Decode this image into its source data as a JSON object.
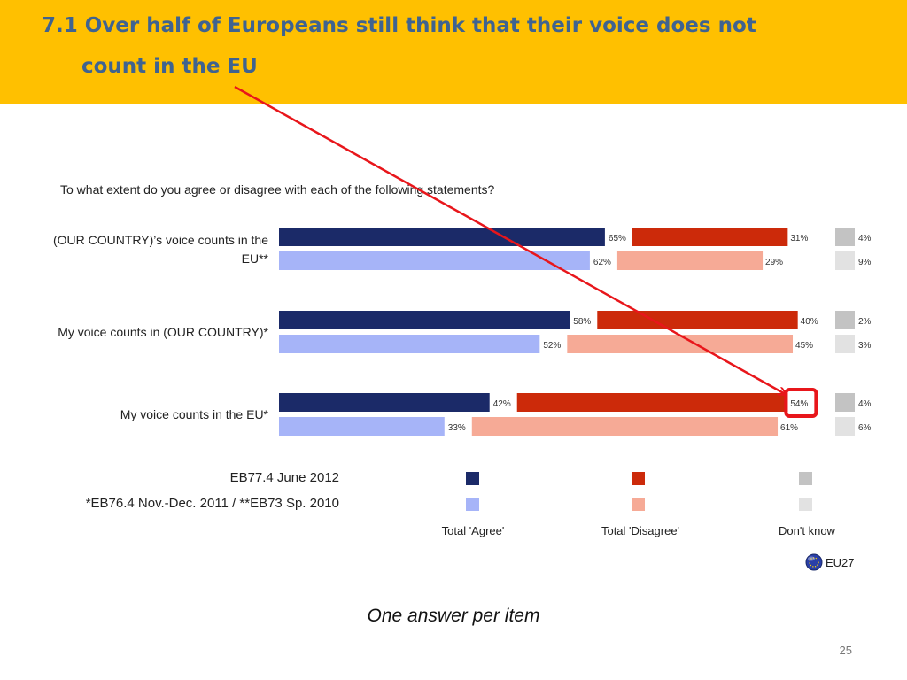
{
  "slide": {
    "title_line1": "7.1 Over half of Europeans still think that their voice does not",
    "title_line2": "count in the EU",
    "footer_note": "One answer per item",
    "page_number": "25",
    "banner_color": "#ffc000",
    "title_color": "#3f6390",
    "annotation_color": "#e8161b"
  },
  "chart_data": {
    "type": "bar",
    "orientation": "horizontal-stacked-100",
    "question": "To what extent do you agree or disagree with each of the following statements?",
    "categories": [
      "(OUR COUNTRY)’s voice counts in the EU**",
      "My voice counts in (OUR COUNTRY)*",
      "My voice counts in the EU*"
    ],
    "category_lines": [
      [
        "(OUR COUNTRY)’s voice counts in the",
        "EU**"
      ],
      [
        "My voice counts in (OUR COUNTRY)*"
      ],
      [
        "My voice counts in the EU*"
      ]
    ],
    "waves": [
      {
        "label": "EB77.4 June 2012",
        "values": {
          "agree": [
            65,
            58,
            42
          ],
          "disagree": [
            31,
            40,
            54
          ],
          "dont_know": [
            4,
            2,
            4
          ]
        },
        "colors": {
          "agree": "#1b2a68",
          "disagree": "#cc2a0a",
          "dont_know": "#c3c3c3"
        }
      },
      {
        "label": "*EB76.4 Nov.-Dec. 2011 / **EB73 Sp. 2010",
        "values": {
          "agree": [
            62,
            52,
            33
          ],
          "disagree": [
            29,
            45,
            61
          ],
          "dont_know": [
            9,
            3,
            6
          ]
        },
        "colors": {
          "agree": "#a6b4f8",
          "disagree": "#f6aa96",
          "dont_know": "#e2e2e2"
        }
      }
    ],
    "legend_categories": [
      "Total 'Agree'",
      "Total 'Disagree'",
      "Don't know"
    ],
    "legend_items": [
      "EB77.4 June 2012",
      "*EB76.4 Nov.-Dec. 2011 / **EB73 Sp. 2010"
    ],
    "region_label": "EU27",
    "region_icon": "eu-flag-globe-icon",
    "highlight": {
      "category_index": 2,
      "wave_index": 0,
      "series": "disagree",
      "value": 54
    }
  }
}
